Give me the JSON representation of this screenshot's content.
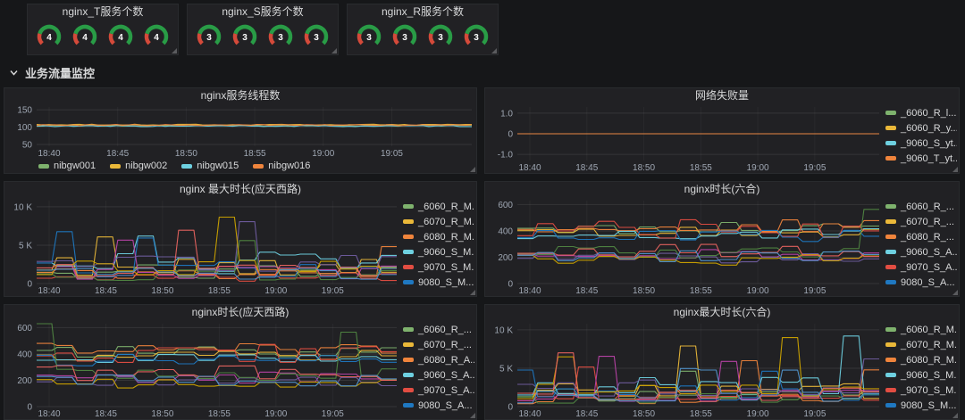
{
  "colors": {
    "page_bg": "#161719",
    "panel_bg": "#212124",
    "title_text": "#d8d9da",
    "axis_text": "#9fa7b3",
    "grid_line": "rgba(255,255,255,0.09)",
    "gauge_green": "#299c46",
    "gauge_red": "#d44a3a",
    "gauge_value_text": "#ffffff"
  },
  "gauge_row": {
    "panels": [
      {
        "title": "nginx_T服务个数",
        "values": [
          "4",
          "4",
          "4",
          "4"
        ]
      },
      {
        "title": "nginx_S服务个数",
        "values": [
          "3",
          "3",
          "3",
          "3"
        ]
      },
      {
        "title": "nginx_R服务个数",
        "values": [
          "3",
          "3",
          "3",
          "3"
        ]
      }
    ]
  },
  "row_header": {
    "label": "业务流量监控"
  },
  "chart_data": [
    {
      "type": "line",
      "title": "nginx服务线程数",
      "style": "flat",
      "x_ticks": [
        "18:40",
        "18:45",
        "18:50",
        "18:55",
        "19:00",
        "19:05"
      ],
      "y_ticks": [
        {
          "label": "150",
          "value": 150
        },
        {
          "label": "100",
          "value": 100
        },
        {
          "label": "50",
          "value": 50
        }
      ],
      "ylim": [
        45,
        158
      ],
      "legend": {
        "position": "bottom",
        "items": [
          {
            "label": "nibgw001",
            "color": "#7EB26D"
          },
          {
            "label": "nibgw002",
            "color": "#EAB839"
          },
          {
            "label": "nibgw015",
            "color": "#6ED0E0"
          },
          {
            "label": "nibgw016",
            "color": "#EF843C"
          }
        ]
      },
      "series": [
        {
          "color": "#7EB26D",
          "base": 104,
          "amp": 1.5
        },
        {
          "color": "#EAB839",
          "base": 107,
          "amp": 1.5
        },
        {
          "color": "#6ED0E0",
          "base": 103,
          "amp": 1.5
        },
        {
          "color": "#EF843C",
          "base": 106,
          "amp": 1.5
        }
      ]
    },
    {
      "type": "line",
      "title": "网络失败量",
      "style": "flat",
      "x_ticks": [
        "18:40",
        "18:45",
        "18:50",
        "18:55",
        "19:00",
        "19:05"
      ],
      "y_ticks": [
        {
          "label": "1.0",
          "value": 1
        },
        {
          "label": "0",
          "value": 0
        },
        {
          "label": "-1.0",
          "value": -1
        }
      ],
      "ylim": [
        -1.3,
        1.3
      ],
      "legend": {
        "position": "right",
        "items": [
          {
            "label": "_6060_R_l...",
            "color": "#7EB26D"
          },
          {
            "label": "_6060_R_y...",
            "color": "#EAB839"
          },
          {
            "label": "_9060_S_yt...",
            "color": "#6ED0E0"
          },
          {
            "label": "_9060_T_yt...",
            "color": "#EF843C"
          }
        ]
      },
      "series": [
        {
          "color": "#7EB26D",
          "base": 0,
          "amp": 0
        },
        {
          "color": "#EAB839",
          "base": 0,
          "amp": 0
        },
        {
          "color": "#6ED0E0",
          "base": 0,
          "amp": 0
        },
        {
          "color": "#EF843C",
          "base": 0,
          "amp": 0
        }
      ]
    },
    {
      "type": "line",
      "title": "nginx 最大时长(应天西路)",
      "style": "step",
      "x_ticks": [
        "18:40",
        "18:45",
        "18:50",
        "18:55",
        "19:00",
        "19:05"
      ],
      "y_ticks": [
        {
          "label": "10 K",
          "value": 10000
        },
        {
          "label": "5 K",
          "value": 5000
        },
        {
          "label": "0",
          "value": 0
        }
      ],
      "ylim": [
        0,
        10800
      ],
      "legend": {
        "position": "right",
        "items": [
          {
            "label": "_6060_R_M...",
            "color": "#7EB26D"
          },
          {
            "label": "_6070_R_M...",
            "color": "#EAB839"
          },
          {
            "label": "_6080_R_M...",
            "color": "#EF843C"
          },
          {
            "label": "_9060_S_M...",
            "color": "#6ED0E0"
          },
          {
            "label": "_9070_S_M...",
            "color": "#E24D42"
          },
          {
            "label": "9080_S_M...",
            "color": "#1F78C1"
          }
        ]
      },
      "series": [
        {
          "color": "#7EB26D",
          "base": 1600,
          "amp": 1000,
          "spike": 6200
        },
        {
          "color": "#EAB839",
          "base": 2200,
          "amp": 1200,
          "spike": 6800
        },
        {
          "color": "#EF843C",
          "base": 1200,
          "amp": 800,
          "spike": 5200
        },
        {
          "color": "#6ED0E0",
          "base": 2800,
          "amp": 1300,
          "spike": 7200
        },
        {
          "color": "#E24D42",
          "base": 900,
          "amp": 600,
          "spike": 6400
        },
        {
          "color": "#1F78C1",
          "base": 1900,
          "amp": 1100,
          "spike": 5600
        },
        {
          "color": "#BA43A9",
          "base": 1400,
          "amp": 900,
          "spike": 6000
        },
        {
          "color": "#705DA0",
          "base": 2500,
          "amp": 1200,
          "spike": 6600
        },
        {
          "color": "#508642",
          "base": 1100,
          "amp": 700,
          "spike": 5000
        },
        {
          "color": "#CCA300",
          "base": 2000,
          "amp": 1000,
          "spike": 7400
        },
        {
          "color": "#EA6460",
          "base": 1700,
          "amp": 900,
          "spike": 5800
        },
        {
          "color": "#5195CE",
          "base": 1300,
          "amp": 800,
          "spike": 6100
        }
      ]
    },
    {
      "type": "line",
      "title": "nginx时长(六合)",
      "style": "step",
      "x_ticks": [
        "18:40",
        "18:45",
        "18:50",
        "18:55",
        "19:00",
        "19:05"
      ],
      "y_ticks": [
        {
          "label": "600",
          "value": 600
        },
        {
          "label": "400",
          "value": 400
        },
        {
          "label": "200",
          "value": 200
        },
        {
          "label": "0",
          "value": 0
        }
      ],
      "ylim": [
        0,
        630
      ],
      "legend": {
        "position": "right",
        "items": [
          {
            "label": "_6060_R_...",
            "color": "#7EB26D"
          },
          {
            "label": "_6070_R_...",
            "color": "#EAB839"
          },
          {
            "label": "_6080_R_...",
            "color": "#EF843C"
          },
          {
            "label": "_9060_S_A...",
            "color": "#6ED0E0"
          },
          {
            "label": "_9070_S_A...",
            "color": "#E24D42"
          },
          {
            "label": "9080_S_A...",
            "color": "#1F78C1"
          }
        ]
      },
      "series": [
        {
          "color": "#7EB26D",
          "base": 420,
          "amp": 45
        },
        {
          "color": "#EAB839",
          "base": 395,
          "amp": 40
        },
        {
          "color": "#EF843C",
          "base": 440,
          "amp": 50
        },
        {
          "color": "#6ED0E0",
          "base": 380,
          "amp": 40
        },
        {
          "color": "#E24D42",
          "base": 410,
          "amp": 70,
          "spike": 560
        },
        {
          "color": "#1F78C1",
          "base": 360,
          "amp": 45
        },
        {
          "color": "#BA43A9",
          "base": 215,
          "amp": 45
        },
        {
          "color": "#705DA0",
          "base": 195,
          "amp": 40
        },
        {
          "color": "#508642",
          "base": 235,
          "amp": 50,
          "spike": 540
        },
        {
          "color": "#CCA300",
          "base": 180,
          "amp": 40
        },
        {
          "color": "#EA6460",
          "base": 250,
          "amp": 60
        },
        {
          "color": "#5195CE",
          "base": 205,
          "amp": 45
        }
      ]
    },
    {
      "type": "line",
      "title": "nginx时长(应天西路)",
      "style": "step",
      "x_ticks": [
        "18:40",
        "18:45",
        "18:50",
        "18:55",
        "19:00",
        "19:05"
      ],
      "y_ticks": [
        {
          "label": "600",
          "value": 600
        },
        {
          "label": "400",
          "value": 400
        },
        {
          "label": "200",
          "value": 200
        },
        {
          "label": "0",
          "value": 0
        }
      ],
      "ylim": [
        0,
        630
      ],
      "legend": {
        "position": "right",
        "items": [
          {
            "label": "_6060_R_...",
            "color": "#7EB26D"
          },
          {
            "label": "_6070_R_...",
            "color": "#EAB839"
          },
          {
            "label": "_6080_R_A...",
            "color": "#EF843C"
          },
          {
            "label": "_9060_S_A...",
            "color": "#6ED0E0"
          },
          {
            "label": "_9070_S_A...",
            "color": "#E24D42"
          },
          {
            "label": "9080_S_A...",
            "color": "#1F78C1"
          }
        ]
      },
      "series": [
        {
          "color": "#7EB26D",
          "base": 415,
          "amp": 45
        },
        {
          "color": "#EAB839",
          "base": 390,
          "amp": 40
        },
        {
          "color": "#EF843C",
          "base": 435,
          "amp": 50
        },
        {
          "color": "#6ED0E0",
          "base": 375,
          "amp": 40
        },
        {
          "color": "#E24D42",
          "base": 405,
          "amp": 70,
          "spike": 560
        },
        {
          "color": "#1F78C1",
          "base": 355,
          "amp": 45
        },
        {
          "color": "#BA43A9",
          "base": 220,
          "amp": 45
        },
        {
          "color": "#705DA0",
          "base": 190,
          "amp": 40
        },
        {
          "color": "#508642",
          "base": 240,
          "amp": 50,
          "spike": 540
        },
        {
          "color": "#CCA300",
          "base": 175,
          "amp": 40
        },
        {
          "color": "#EA6460",
          "base": 255,
          "amp": 60
        },
        {
          "color": "#5195CE",
          "base": 200,
          "amp": 45
        }
      ]
    },
    {
      "type": "line",
      "title": "nginx最大时长(六合)",
      "style": "step",
      "x_ticks": [
        "18:40",
        "18:45",
        "18:50",
        "18:55",
        "19:00",
        "19:05"
      ],
      "y_ticks": [
        {
          "label": "10 K",
          "value": 10000
        },
        {
          "label": "5 K",
          "value": 5000
        },
        {
          "label": "0",
          "value": 0
        }
      ],
      "ylim": [
        0,
        10800
      ],
      "legend": {
        "position": "right",
        "items": [
          {
            "label": "_6060_R_M...",
            "color": "#7EB26D"
          },
          {
            "label": "_6070_R_M...",
            "color": "#EAB839"
          },
          {
            "label": "_6080_R_M...",
            "color": "#EF843C"
          },
          {
            "label": "_9060_S_M...",
            "color": "#6ED0E0"
          },
          {
            "label": "_9070_S_M...",
            "color": "#E24D42"
          },
          {
            "label": "9080_S_M...",
            "color": "#1F78C1"
          }
        ]
      },
      "series": [
        {
          "color": "#7EB26D",
          "base": 1500,
          "amp": 950,
          "spike": 6000
        },
        {
          "color": "#EAB839",
          "base": 2100,
          "amp": 1150,
          "spike": 6600
        },
        {
          "color": "#EF843C",
          "base": 1150,
          "amp": 780,
          "spike": 5400
        },
        {
          "color": "#6ED0E0",
          "base": 2700,
          "amp": 1250,
          "spike": 7600
        },
        {
          "color": "#E24D42",
          "base": 950,
          "amp": 620,
          "spike": 6300
        },
        {
          "color": "#1F78C1",
          "base": 1850,
          "amp": 1050,
          "spike": 5700
        },
        {
          "color": "#BA43A9",
          "base": 1450,
          "amp": 880,
          "spike": 6100
        },
        {
          "color": "#705DA0",
          "base": 2400,
          "amp": 1150,
          "spike": 6500
        },
        {
          "color": "#508642",
          "base": 1050,
          "amp": 680,
          "spike": 5100
        },
        {
          "color": "#CCA300",
          "base": 1950,
          "amp": 980,
          "spike": 7300
        },
        {
          "color": "#EA6460",
          "base": 1650,
          "amp": 880,
          "spike": 5900
        },
        {
          "color": "#5195CE",
          "base": 1250,
          "amp": 780,
          "spike": 6200
        }
      ]
    }
  ]
}
